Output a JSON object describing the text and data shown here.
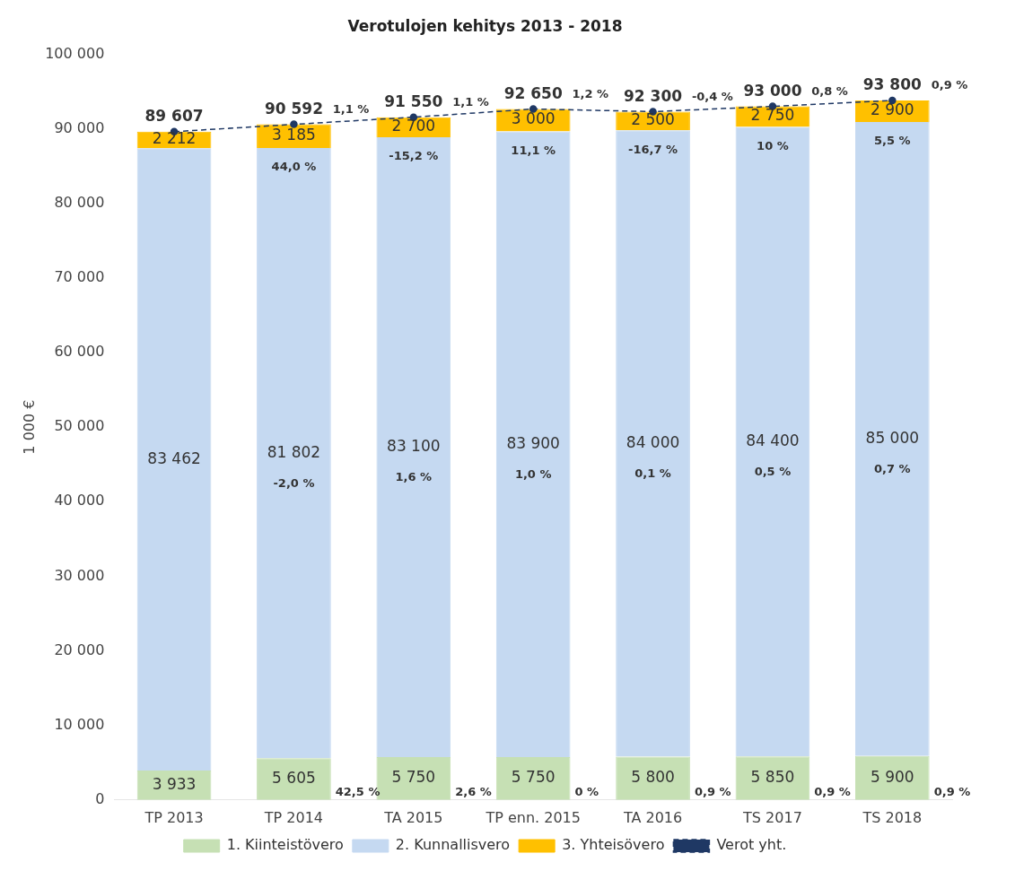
{
  "chart_data": {
    "type": "bar",
    "title": "Verotulojen kehitys 2013 - 2018",
    "ylabel": "1 000 €",
    "stacked": true,
    "grid": false,
    "legend": "bottom",
    "categories": [
      "TP 2013",
      "TP 2014",
      "TA 2015",
      "TP enn. 2015",
      "TA 2016",
      "TS 2017",
      "TS 2018"
    ],
    "ylim": [
      0,
      100000
    ],
    "yticks": [
      {
        "value": 0,
        "label": "0"
      },
      {
        "value": 10000,
        "label": "10 000"
      },
      {
        "value": 20000,
        "label": "20 000"
      },
      {
        "value": 30000,
        "label": "30 000"
      },
      {
        "value": 40000,
        "label": "40 000"
      },
      {
        "value": 50000,
        "label": "50 000"
      },
      {
        "value": 60000,
        "label": "60 000"
      },
      {
        "value": 70000,
        "label": "70 000"
      },
      {
        "value": 80000,
        "label": "80 000"
      },
      {
        "value": 90000,
        "label": "90 000"
      },
      {
        "value": 100000,
        "label": "100 000"
      }
    ],
    "series": [
      {
        "name": "1. Kiinteistövero",
        "color": "#c6e0b4",
        "values": [
          3933,
          5605,
          5750,
          5750,
          5800,
          5850,
          5900
        ],
        "value_labels": [
          "3 933",
          "5 605",
          "5 750",
          "5 750",
          "5 800",
          "5 850",
          "5 900"
        ]
      },
      {
        "name": "2. Kunnallisvero",
        "color": "#c5d9f1",
        "values": [
          83462,
          81802,
          83100,
          83900,
          84000,
          84400,
          85000
        ],
        "value_labels": [
          "83 462",
          "81 802",
          "83 100",
          "83 900",
          "84 000",
          "84 400",
          "85 000"
        ]
      },
      {
        "name": "3. Yhteisövero",
        "color": "#ffc000",
        "values": [
          2212,
          3185,
          2700,
          3000,
          2500,
          2750,
          2900
        ],
        "value_labels": [
          "2 212",
          "3 185",
          "2 700",
          "3 000",
          "2 500",
          "2 750",
          "2 900"
        ]
      },
      {
        "name": "Verot yht.",
        "type": "line",
        "color": "#1f3864",
        "line_style": "dashed",
        "marker": "circle",
        "values": [
          89607,
          90592,
          91550,
          92650,
          92300,
          93000,
          93800
        ],
        "value_labels": [
          "89 607",
          "90 592",
          "91 550",
          "92 650",
          "92 300",
          "93 000",
          "93 800"
        ]
      }
    ],
    "annotations": [
      "42,5 %",
      "2,6 %",
      "0 %",
      "0,9 %",
      "0,9 %",
      "0,9 %",
      "-2,0 %",
      "1,6 %",
      "1,0 %",
      "0,1 %",
      "0,5 %",
      "0,7 %",
      "44,0 %",
      "-15,2 %",
      "11,1 %",
      "-16,7 %",
      "10 %",
      "5,5 %",
      "1,1 %",
      "1,1 %",
      "1,2 %",
      "-0,4 %",
      "0,8 %",
      "0,9 %"
    ]
  }
}
